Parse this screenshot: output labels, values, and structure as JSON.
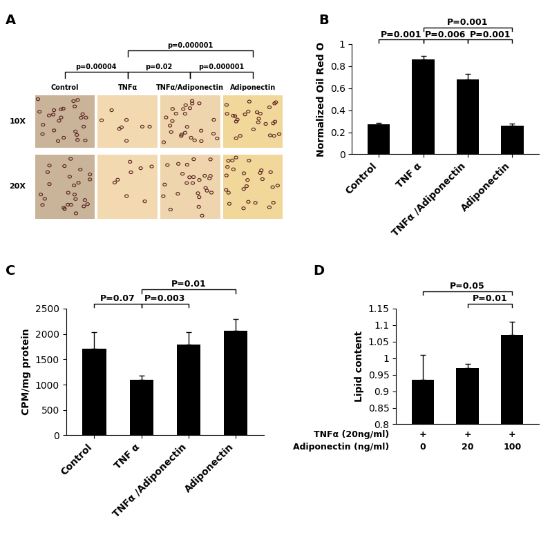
{
  "panel_labels": [
    "A",
    "B",
    "C",
    "D"
  ],
  "panel_A": {
    "columns": [
      "Control",
      "TNFα",
      "TNFα/Adiponectin",
      "Adiponectin"
    ],
    "rows": [
      "10X",
      "20X"
    ],
    "comparisons": [
      {
        "pair": [
          0,
          1
        ],
        "label": "p=0.00004"
      },
      {
        "pair": [
          1,
          2
        ],
        "label": "p=0.02"
      },
      {
        "pair": [
          2,
          3
        ],
        "label": "p=0.000001"
      },
      {
        "pair": [
          1,
          3
        ],
        "label": "p=0.000001"
      }
    ]
  },
  "chart_data": [
    {
      "type": "bar",
      "panel": "B",
      "categories": [
        "Control",
        "TNF α",
        "TNFα /Adiponectin",
        "Adiponectin"
      ],
      "values": [
        0.27,
        0.86,
        0.68,
        0.26
      ],
      "errors": [
        0.015,
        0.03,
        0.05,
        0.02
      ],
      "color": "#000000",
      "ylabel": "Normalized Oil Red O",
      "ylim": [
        0,
        1
      ],
      "yticks": [
        0,
        0.2,
        0.4,
        0.6,
        0.8,
        1
      ],
      "comparisons": [
        {
          "pair": [
            0,
            1
          ],
          "label": "P=0.001"
        },
        {
          "pair": [
            1,
            2
          ],
          "label": "P=0.006"
        },
        {
          "pair": [
            1,
            3
          ],
          "label": "P=0.001"
        },
        {
          "pair": [
            2,
            3
          ],
          "label": "P=0.001"
        }
      ]
    },
    {
      "type": "bar",
      "panel": "C",
      "categories": [
        "Control",
        "TNF α",
        "TNFα /Adiponectin",
        "Adiponectin"
      ],
      "values": [
        1710,
        1090,
        1790,
        2060
      ],
      "errors": [
        320,
        90,
        250,
        240
      ],
      "color": "#000000",
      "ylabel": "CPM/mg protein",
      "ylim": [
        0,
        2500
      ],
      "yticks": [
        0,
        500,
        1000,
        1500,
        2000,
        2500
      ],
      "comparisons": [
        {
          "pair": [
            0,
            1
          ],
          "label": "P=0.07"
        },
        {
          "pair": [
            1,
            2
          ],
          "label": "P=0.003"
        },
        {
          "pair": [
            1,
            3
          ],
          "label": "P=0.01"
        }
      ]
    },
    {
      "type": "bar",
      "panel": "D",
      "categories": [
        null,
        null,
        null
      ],
      "x_rows": [
        {
          "label": "TNFα (20ng/ml)",
          "values": [
            "+",
            "+",
            "+"
          ]
        },
        {
          "label": "Adiponectin (ng/ml)",
          "values": [
            "0",
            "20",
            "100"
          ]
        }
      ],
      "values": [
        0.935,
        0.97,
        1.07
      ],
      "errors": [
        0.075,
        0.012,
        0.04
      ],
      "color": "#000000",
      "ylabel": "Lipid content",
      "ylim": [
        0.8,
        1.15
      ],
      "yticks": [
        0.8,
        0.85,
        0.9,
        0.95,
        1,
        1.05,
        1.1,
        1.15
      ],
      "comparisons": [
        {
          "pair": [
            0,
            2
          ],
          "label": "P=0.05"
        },
        {
          "pair": [
            1,
            2
          ],
          "label": "P=0.01"
        }
      ]
    }
  ]
}
